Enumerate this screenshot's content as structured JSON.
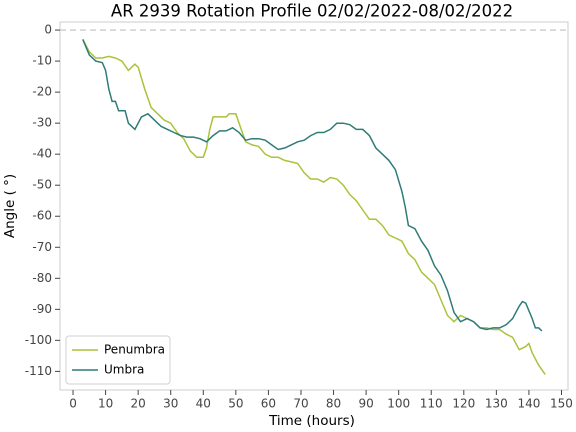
{
  "chart_data": {
    "type": "line",
    "title": "AR 2939 Rotation Profile 02/02/2022-08/02/2022",
    "xlabel": "Time (hours)",
    "ylabel": "Angle ( °)",
    "xlim": [
      -4,
      152
    ],
    "ylim": [
      -116,
      2.6
    ],
    "xticks": [
      0,
      10,
      20,
      30,
      40,
      50,
      60,
      70,
      80,
      90,
      100,
      110,
      120,
      130,
      140,
      150
    ],
    "yticks": [
      0,
      -10,
      -20,
      -30,
      -40,
      -50,
      -60,
      -70,
      -80,
      -90,
      -100,
      -110
    ],
    "reference_line": 0,
    "legend": "lower left",
    "series": [
      {
        "name": "Penumbra",
        "color": "#a9c33a",
        "x": [
          3,
          5,
          7,
          9,
          11,
          13,
          15,
          17,
          18,
          19,
          20,
          22,
          24,
          26,
          28,
          30,
          32,
          34,
          36,
          38,
          40,
          41,
          42,
          43,
          45,
          47,
          48,
          50,
          51,
          53,
          55,
          57,
          59,
          61,
          63,
          65,
          67,
          69,
          71,
          73,
          75,
          77,
          79,
          81,
          83,
          85,
          87,
          89,
          91,
          93,
          95,
          97,
          99,
          101,
          103,
          105,
          107,
          109,
          111,
          113,
          115,
          117,
          119,
          121,
          123,
          125,
          127,
          129,
          131,
          133,
          135,
          137,
          139,
          140,
          141,
          143,
          145
        ],
        "values": [
          -3,
          -7,
          -9,
          -9,
          -8.5,
          -9,
          -10,
          -13,
          -12,
          -11,
          -12,
          -19,
          -25,
          -27,
          -29,
          -30,
          -33,
          -35,
          -39,
          -41,
          -41,
          -38,
          -32,
          -28,
          -28,
          -28,
          -27,
          -27,
          -30,
          -36,
          -37,
          -37.5,
          -40,
          -41,
          -41,
          -42,
          -42.5,
          -43,
          -46,
          -48,
          -48,
          -49,
          -47.5,
          -48,
          -50,
          -53,
          -55,
          -58,
          -61,
          -61,
          -63,
          -66,
          -67,
          -68,
          -72,
          -74,
          -78,
          -80,
          -82,
          -87,
          -92,
          -94,
          -92,
          -93,
          -94,
          -96,
          -96,
          -96.5,
          -96.5,
          -98,
          -99,
          -103,
          -102,
          -101,
          -104,
          -108,
          -111
        ]
      },
      {
        "name": "Umbra",
        "color": "#2f7b78",
        "x": [
          3,
          5,
          7,
          9,
          10,
          11,
          12,
          13,
          14,
          16,
          17,
          19,
          21,
          23,
          25,
          27,
          29,
          31,
          33,
          35,
          37,
          39,
          41,
          43,
          45,
          47,
          49,
          51,
          53,
          55,
          57,
          59,
          61,
          63,
          65,
          67,
          69,
          71,
          73,
          75,
          77,
          79,
          81,
          83,
          85,
          87,
          89,
          91,
          93,
          95,
          97,
          99,
          101,
          102,
          103,
          105,
          107,
          109,
          111,
          113,
          115,
          117,
          119,
          121,
          123,
          125,
          127,
          129,
          131,
          133,
          135,
          137,
          138,
          139,
          141,
          142,
          143,
          144
        ],
        "values": [
          -3,
          -8,
          -10,
          -10.5,
          -13,
          -19,
          -23,
          -23,
          -26,
          -26,
          -30,
          -32,
          -28,
          -27,
          -29,
          -31,
          -32,
          -33,
          -34,
          -34.5,
          -34.5,
          -35,
          -36,
          -34,
          -32.5,
          -32.5,
          -31.5,
          -33,
          -35.5,
          -35,
          -35,
          -35.5,
          -37,
          -38.5,
          -38,
          -37,
          -36,
          -35.5,
          -34,
          -33,
          -33,
          -32,
          -30,
          -30,
          -30.5,
          -32,
          -32,
          -34,
          -38,
          -40,
          -42,
          -45,
          -52,
          -57,
          -63,
          -64,
          -68,
          -71,
          -76,
          -79,
          -84,
          -91,
          -94,
          -93,
          -94,
          -96,
          -96.5,
          -96,
          -96,
          -95,
          -93,
          -89,
          -87.5,
          -88,
          -93,
          -96,
          -96,
          -97
        ]
      }
    ]
  }
}
